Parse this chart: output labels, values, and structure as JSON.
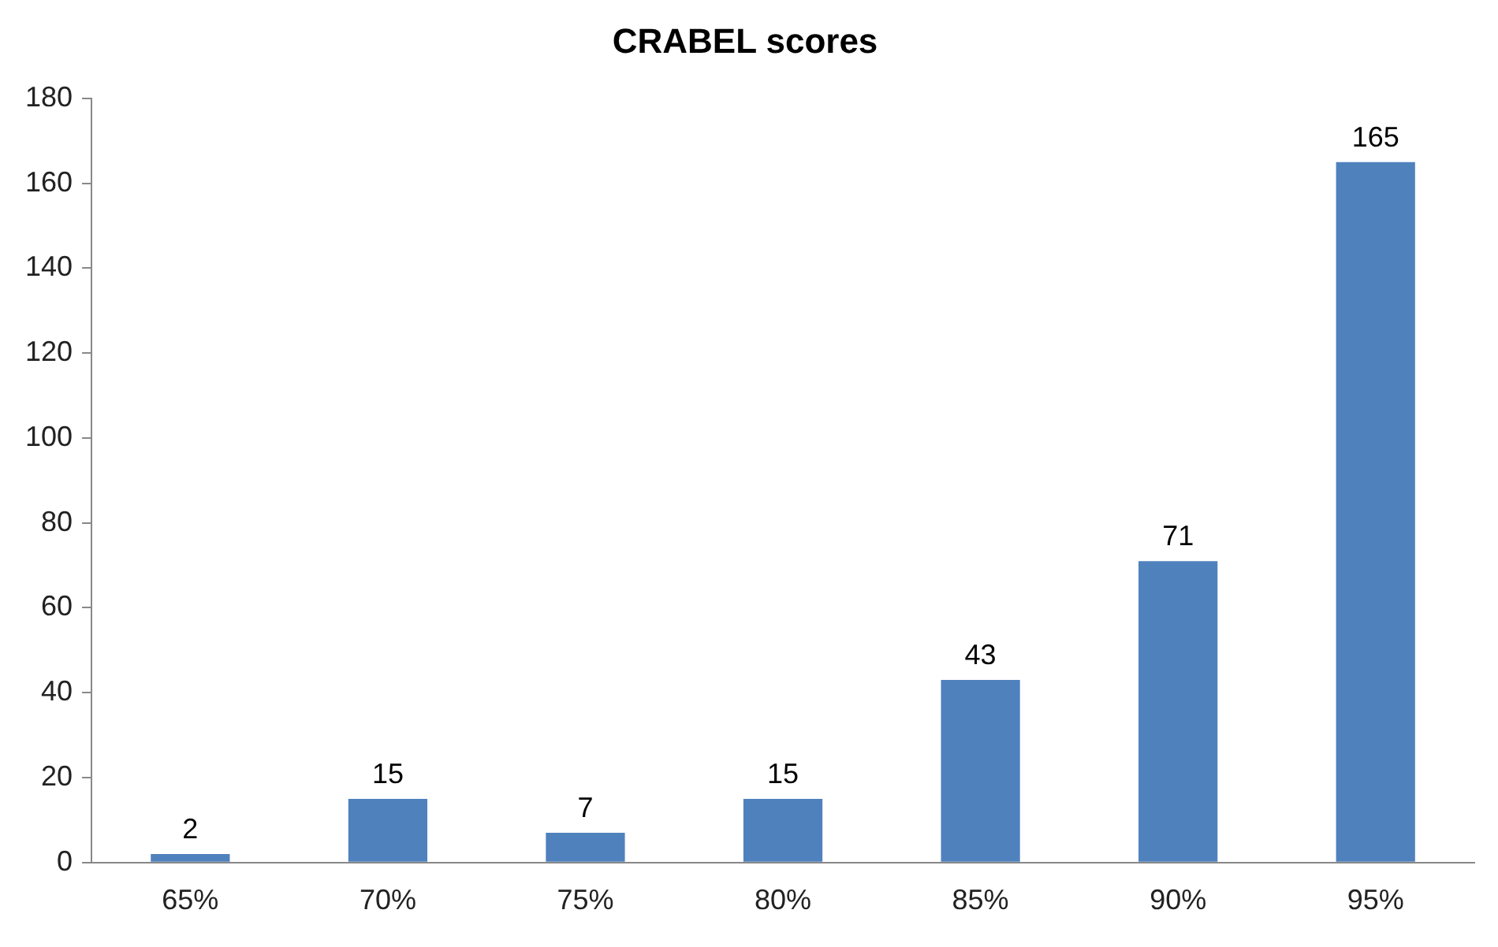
{
  "chart_data": {
    "type": "bar",
    "title": "CRABEL scores",
    "categories": [
      "65%",
      "70%",
      "75%",
      "80%",
      "85%",
      "90%",
      "95%"
    ],
    "values": [
      2,
      15,
      7,
      15,
      43,
      71,
      165
    ],
    "color": "#4f81bd",
    "ylim": [
      0,
      180
    ],
    "yticks": [
      0,
      20,
      40,
      60,
      80,
      100,
      120,
      140,
      160,
      180
    ],
    "grid": false,
    "legend": false,
    "data_labels": true
  }
}
